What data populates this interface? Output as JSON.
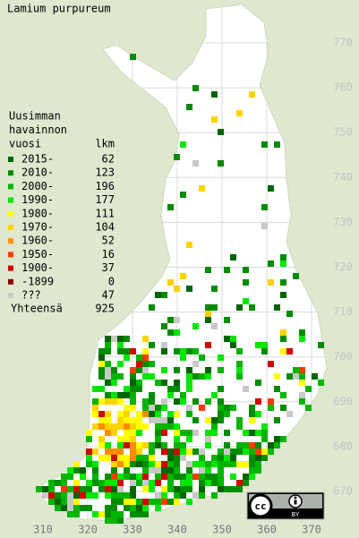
{
  "title": "Lamium purpureum",
  "legend": {
    "heading": [
      "Uusimman",
      "havainnon",
      "vuosi"
    ],
    "count_heading": "lkm",
    "rows": [
      {
        "label": "2015-",
        "count": 62,
        "color": "#006400"
      },
      {
        "label": "2010-",
        "count": 123,
        "color": "#008c00"
      },
      {
        "label": "2000-",
        "count": 196,
        "color": "#00b400"
      },
      {
        "label": "1990-",
        "count": 177,
        "color": "#00e600"
      },
      {
        "label": "1980-",
        "count": 111,
        "color": "#ffff00"
      },
      {
        "label": "1970-",
        "count": 104,
        "color": "#ffd200"
      },
      {
        "label": "1960-",
        "count": 52,
        "color": "#ff8c00"
      },
      {
        "label": "1950-",
        "count": 16,
        "color": "#ff3c00"
      },
      {
        "label": "1900-",
        "count": 37,
        "color": "#d20000"
      },
      {
        "label": "-1899",
        "count": 0,
        "color": "#8c0000"
      },
      {
        "label": "???",
        "count": 47,
        "color": "#c8c8c8"
      }
    ],
    "total": {
      "label": "Yhteensä",
      "count": 925
    }
  },
  "axes": {
    "x_labels": [
      310,
      320,
      330,
      340,
      350,
      360,
      370
    ],
    "y_labels": [
      770,
      760,
      750,
      740,
      730,
      720,
      710,
      700,
      690,
      680,
      670
    ]
  },
  "badge": {
    "cc": "cc",
    "by": "BY"
  }
}
